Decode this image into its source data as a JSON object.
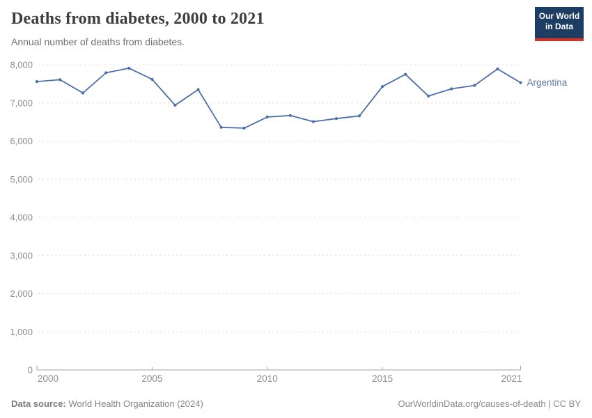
{
  "header": {
    "title": "Deaths from diabetes, 2000 to 2021",
    "subtitle": "Annual number of deaths from diabetes.",
    "logo": {
      "line1": "Our World",
      "line2": "in Data",
      "bg_color": "#1d3d63",
      "stripe_color": "#dc3122"
    }
  },
  "chart_data": {
    "type": "line",
    "title": "Deaths from diabetes, 2000 to 2021",
    "xlabel": "",
    "ylabel": "",
    "x": [
      2000,
      2001,
      2002,
      2003,
      2004,
      2005,
      2006,
      2007,
      2008,
      2009,
      2010,
      2011,
      2012,
      2013,
      2014,
      2015,
      2016,
      2017,
      2018,
      2019,
      2020,
      2021
    ],
    "series": [
      {
        "name": "Argentina",
        "color": "#4c6ea8",
        "label_color": "#5b7aa2",
        "values": [
          7560,
          7610,
          7260,
          7790,
          7910,
          7620,
          6940,
          7350,
          6360,
          6340,
          6630,
          6670,
          6510,
          6590,
          6660,
          7430,
          7750,
          7180,
          7370,
          7460,
          7890,
          7530
        ]
      }
    ],
    "ylim": [
      0,
      8000
    ],
    "ytick_step": 1000,
    "ytick_labels": [
      "0",
      "1,000",
      "2,000",
      "3,000",
      "4,000",
      "5,000",
      "6,000",
      "7,000",
      "8,000"
    ],
    "xticks": [
      2000,
      2005,
      2010,
      2015,
      2021
    ],
    "xtick_labels": [
      "2000",
      "2005",
      "2010",
      "2015",
      "2021"
    ],
    "grid": "horizontal-dashed",
    "legend_position": "end-of-line-label",
    "colors": {
      "grid": "#dcdcdc",
      "axis": "#a3a3a3",
      "tick_text": "#8c8c8c"
    }
  },
  "footer": {
    "datasource_label": "Data source:",
    "datasource_value": " World Health Organization (2024)",
    "license": "OurWorldinData.org/causes-of-death | CC BY"
  }
}
